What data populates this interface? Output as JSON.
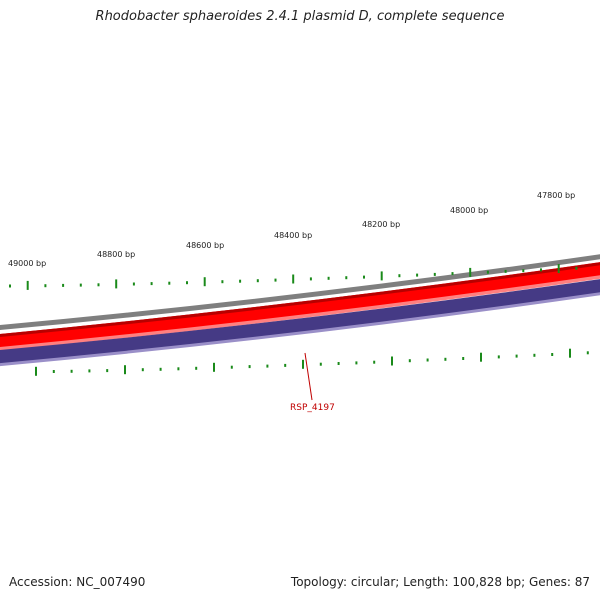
{
  "title": "Rhodobacter sphaeroides 2.4.1 plasmid D, complete sequence",
  "scale_labels": [
    "49000 bp",
    "48800 bp",
    "48600 bp",
    "48400 bp",
    "48200 bp",
    "48000 bp",
    "47800 bp"
  ],
  "gene_label": "RSP_4197",
  "footer": {
    "accession": "Accession: NC_007490",
    "topology": "Topology: circular; Length: 100,828 bp; Genes: 87"
  },
  "colors": {
    "tick": "#1a8a1a",
    "outer_ring": "#7f7f7f",
    "red_band": "#ff0000",
    "red_dark": "#b80000",
    "blue_band": "#453a85",
    "blue_light": "#9a8fc8",
    "label": "#c00000"
  }
}
